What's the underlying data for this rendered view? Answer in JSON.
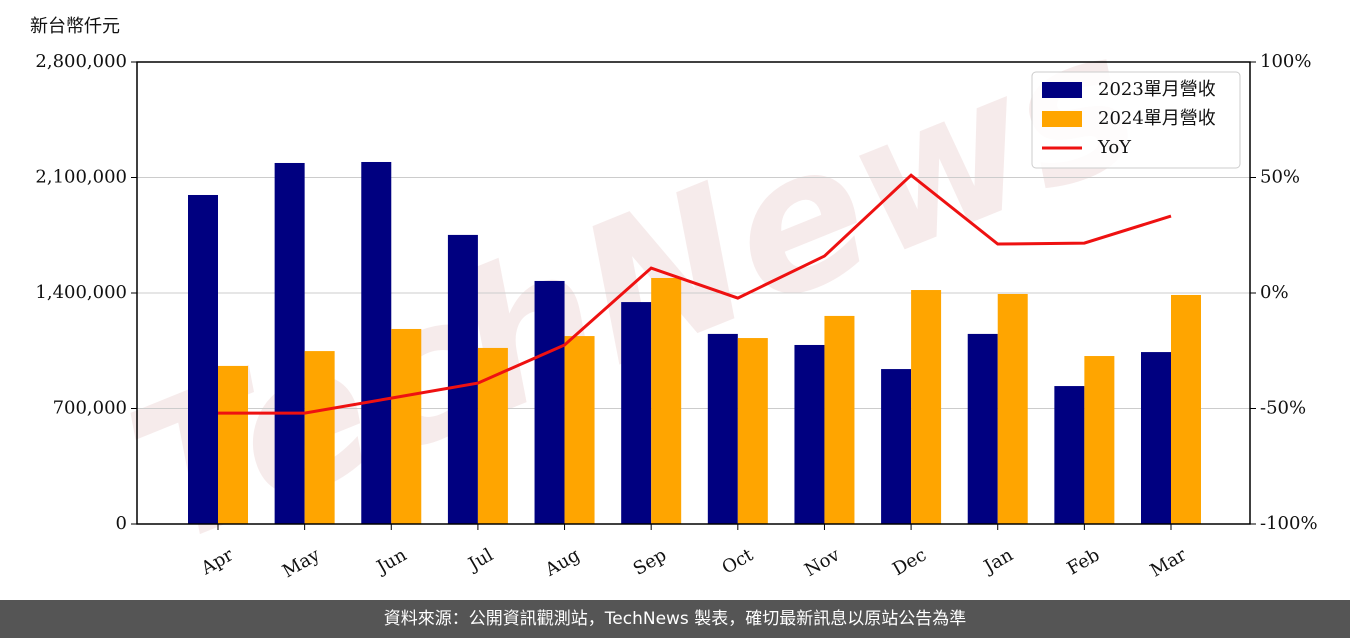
{
  "chart_data": {
    "type": "bar_line",
    "y_label": "新台幣仟元",
    "categories": [
      "Apr",
      "May",
      "Jun",
      "Jul",
      "Aug",
      "Sep",
      "Oct",
      "Nov",
      "Dec",
      "Jan",
      "Feb",
      "Mar"
    ],
    "series": [
      {
        "name": "2023單月營收",
        "color": "#000080",
        "type": "bar",
        "values": [
          1994000,
          2188000,
          2194000,
          1752000,
          1473000,
          1345000,
          1152000,
          1085000,
          939000,
          1152000,
          836000,
          1042000
        ]
      },
      {
        "name": "2024單月營收",
        "color": "#ffa500",
        "type": "bar",
        "values": [
          958000,
          1048000,
          1182000,
          1067000,
          1139000,
          1491000,
          1127000,
          1261000,
          1418000,
          1394000,
          1018000,
          1388000
        ]
      },
      {
        "name": "YoY",
        "color": "#ee1111",
        "type": "line",
        "axis": "y2",
        "values": [
          -52,
          -52,
          -45.5,
          -39,
          -22.5,
          10.8,
          -2.2,
          16,
          51,
          21.2,
          21.6,
          33.3
        ]
      }
    ],
    "ylim": [
      0,
      2800000
    ],
    "yticks": [
      0,
      {
        "value": 700000,
        "label": "700,000"
      },
      {
        "value": 1400000,
        "label": "1,400,000"
      },
      {
        "value": 2100000,
        "label": "2,100,000"
      },
      {
        "value": 2800000,
        "label": "2,800,000"
      }
    ],
    "y2lim": [
      -100,
      100
    ],
    "y2ticks": [
      {
        "value": -100,
        "label": "-100%"
      },
      {
        "value": -50,
        "label": "-50%"
      },
      {
        "value": 0,
        "label": "0%"
      },
      {
        "value": 50,
        "label": "50%"
      },
      {
        "value": 100,
        "label": "100%"
      }
    ],
    "grid": true,
    "legend": "upper-right",
    "watermark": "TechNews",
    "footer": "資料來源：公開資訊觀測站，TechNews 製表，確切最新訊息以原站公告為準"
  }
}
